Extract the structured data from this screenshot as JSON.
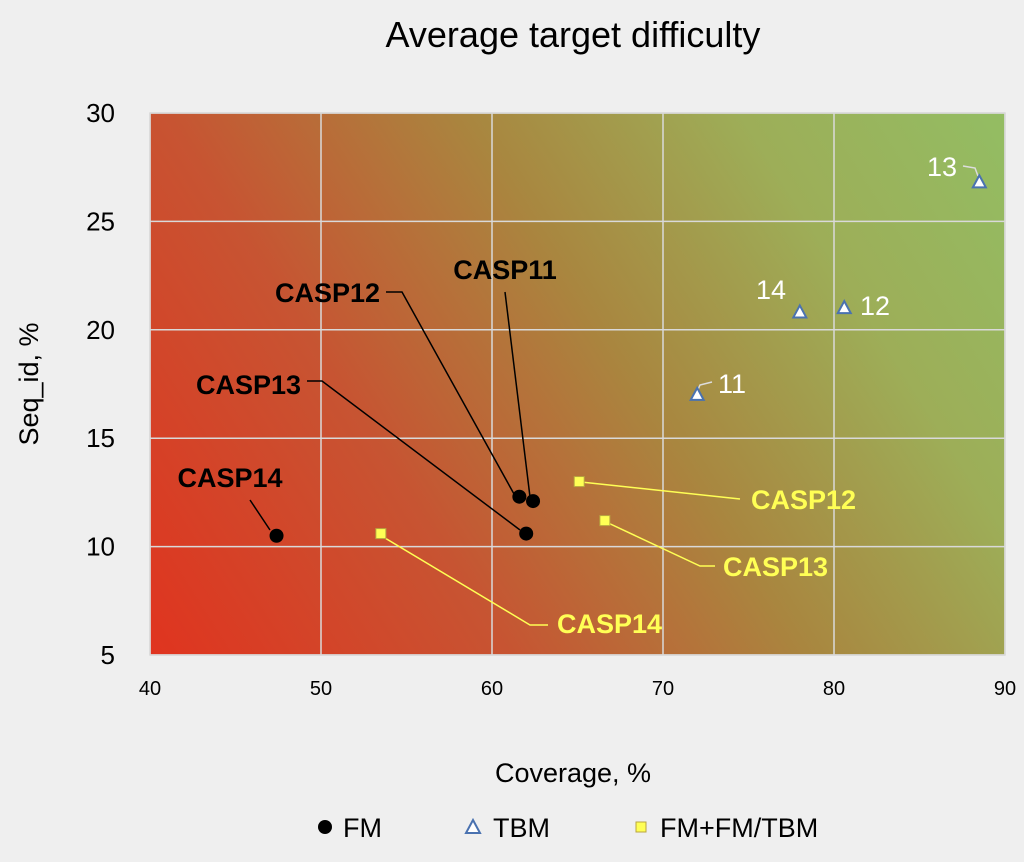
{
  "chart_data": {
    "type": "scatter",
    "title": "Average target difficulty",
    "xlabel": "Coverage, %",
    "ylabel": "Seq_id, %",
    "xlim": [
      40,
      90
    ],
    "ylim": [
      5,
      30
    ],
    "xticks": [
      "40",
      "50",
      "60",
      "70",
      "80",
      "90"
    ],
    "yticks": [
      "5",
      "10",
      "15",
      "20",
      "25",
      "30"
    ],
    "grid": true,
    "background": "gradient red (bottom-left) to green (top-right)",
    "legend_position": "bottom",
    "series": [
      {
        "name": "FM",
        "marker": "circle",
        "color": "#000000",
        "points": [
          {
            "x": 62.4,
            "y": 12.1,
            "label": "CASP11"
          },
          {
            "x": 61.6,
            "y": 12.3,
            "label": "CASP12"
          },
          {
            "x": 62.0,
            "y": 10.6,
            "label": "CASP13"
          },
          {
            "x": 47.4,
            "y": 10.5,
            "label": "CASP14"
          }
        ]
      },
      {
        "name": "TBM",
        "marker": "triangle",
        "color": "#4a72b0",
        "points": [
          {
            "x": 72.0,
            "y": 17.0,
            "label": "11"
          },
          {
            "x": 80.6,
            "y": 21.0,
            "label": "12"
          },
          {
            "x": 88.5,
            "y": 26.8,
            "label": "13"
          },
          {
            "x": 78.0,
            "y": 20.8,
            "label": "14"
          }
        ]
      },
      {
        "name": "FM+FM/TBM",
        "marker": "square",
        "color": "#ffff55",
        "points": [
          {
            "x": 65.1,
            "y": 13.0,
            "label": "CASP12"
          },
          {
            "x": 66.6,
            "y": 11.2,
            "label": "CASP13"
          },
          {
            "x": 53.5,
            "y": 10.6,
            "label": "CASP14"
          }
        ]
      }
    ]
  }
}
